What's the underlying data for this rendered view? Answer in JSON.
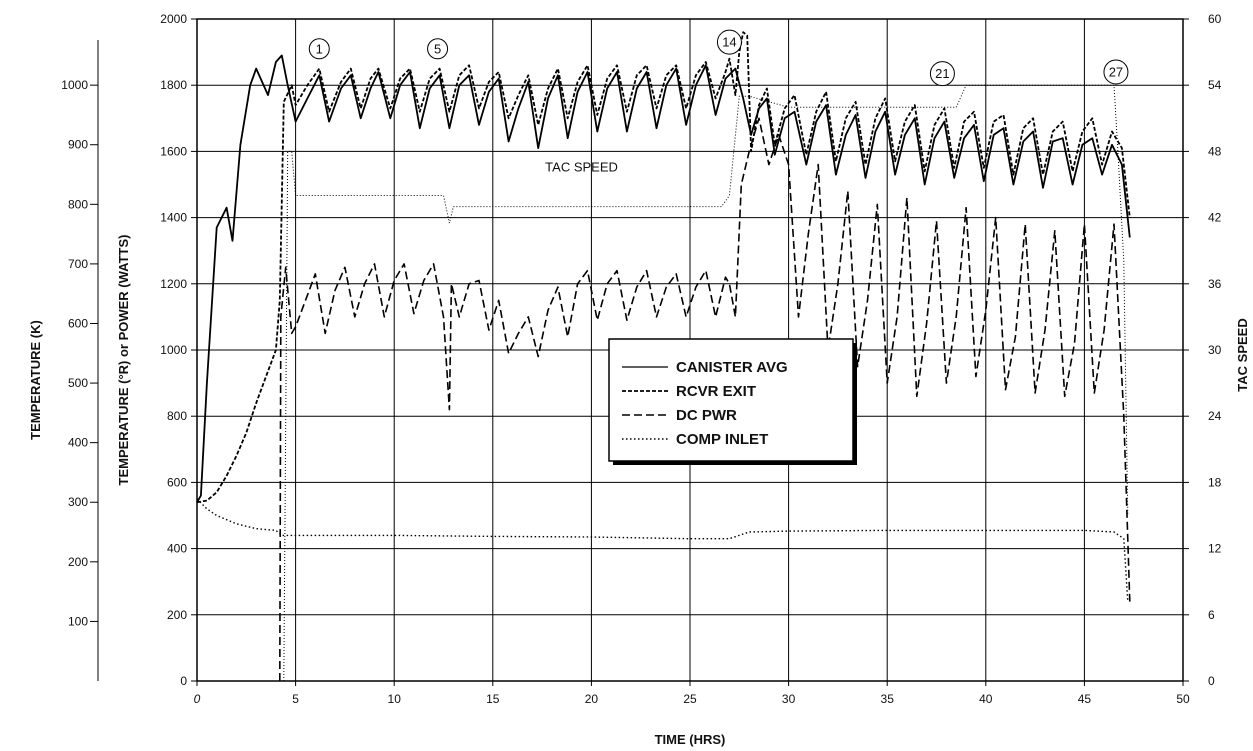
{
  "chart_data": {
    "type": "line",
    "xlabel": "TIME (HRS)",
    "ylabel_left": "TEMPERATURE (°R) or POWER (WATTS)",
    "ylabel_kelvin": "TEMPERATURE (K)",
    "ylabel_right": "TAC SPEED",
    "xlim": [
      0,
      50
    ],
    "ylim_left": [
      0,
      2000
    ],
    "ylim_right": [
      0,
      60
    ],
    "ylim_kelvin": [
      0,
      1111
    ],
    "x_ticks": [
      "0",
      "5",
      "10",
      "15",
      "20",
      "25",
      "30",
      "35",
      "40",
      "45",
      "50"
    ],
    "y_ticks_left": [
      "0",
      "200",
      "400",
      "600",
      "800",
      "1000",
      "1200",
      "1400",
      "1600",
      "1800",
      "2000"
    ],
    "y_ticks_right": [
      "0",
      "6",
      "12",
      "18",
      "24",
      "30",
      "36",
      "42",
      "48",
      "54",
      "60"
    ],
    "y_ticks_kelvin": [
      "100",
      "200",
      "300",
      "400",
      "500",
      "600",
      "700",
      "800",
      "900",
      "1000"
    ],
    "grid": true,
    "legend_position": "center",
    "annotations": [
      {
        "text": "1",
        "x": 6.2,
        "y": 1910
      },
      {
        "text": "5",
        "x": 12.2,
        "y": 1910
      },
      {
        "text": "14",
        "x": 27.0,
        "y": 1930
      },
      {
        "text": "21",
        "x": 37.8,
        "y": 1835
      },
      {
        "text": "27",
        "x": 46.6,
        "y": 1840
      }
    ],
    "inline_label": {
      "text": "TAC SPEED",
      "x": 19.5,
      "y": 1540
    },
    "series": [
      {
        "name": "CANISTER AVG",
        "style": "solid",
        "x": [
          0,
          0.2,
          0.5,
          1.0,
          1.5,
          1.8,
          2.2,
          2.7,
          3.0,
          3.3,
          3.6,
          4.0,
          4.3,
          4.6,
          5.0,
          5.6,
          6.2,
          6.7,
          7.3,
          7.8,
          8.3,
          8.8,
          9.2,
          9.8,
          10.3,
          10.8,
          11.3,
          11.8,
          12.3,
          12.8,
          13.3,
          13.8,
          14.3,
          14.8,
          15.3,
          15.8,
          16.3,
          16.8,
          17.3,
          17.8,
          18.3,
          18.8,
          19.3,
          19.8,
          20.3,
          20.8,
          21.3,
          21.8,
          22.3,
          22.8,
          23.3,
          23.8,
          24.3,
          24.8,
          25.3,
          25.8,
          26.3,
          26.8,
          27.3,
          27.7,
          28.1,
          28.5,
          28.9,
          29.3,
          29.8,
          30.3,
          30.9,
          31.4,
          31.9,
          32.4,
          32.9,
          33.4,
          33.9,
          34.4,
          34.9,
          35.4,
          35.9,
          36.4,
          36.9,
          37.4,
          37.9,
          38.4,
          38.9,
          39.4,
          39.9,
          40.4,
          40.9,
          41.4,
          41.9,
          42.4,
          42.9,
          43.4,
          43.9,
          44.4,
          44.9,
          45.4,
          45.9,
          46.4,
          46.9,
          47.3
        ],
        "values": [
          540,
          560,
          900,
          1370,
          1430,
          1330,
          1620,
          1800,
          1850,
          1810,
          1770,
          1870,
          1890,
          1800,
          1690,
          1760,
          1830,
          1690,
          1790,
          1830,
          1700,
          1790,
          1840,
          1700,
          1800,
          1840,
          1670,
          1790,
          1830,
          1670,
          1800,
          1830,
          1680,
          1780,
          1820,
          1630,
          1730,
          1810,
          1610,
          1760,
          1830,
          1640,
          1780,
          1840,
          1660,
          1790,
          1840,
          1660,
          1790,
          1840,
          1670,
          1800,
          1850,
          1680,
          1800,
          1860,
          1710,
          1820,
          1850,
          1760,
          1650,
          1730,
          1760,
          1590,
          1700,
          1720,
          1560,
          1690,
          1740,
          1530,
          1650,
          1710,
          1520,
          1660,
          1720,
          1530,
          1650,
          1700,
          1500,
          1640,
          1690,
          1520,
          1640,
          1680,
          1510,
          1650,
          1670,
          1500,
          1630,
          1660,
          1490,
          1630,
          1640,
          1500,
          1620,
          1640,
          1530,
          1620,
          1560,
          1340
        ]
      },
      {
        "name": "RCVR EXIT",
        "style": "dense dashed",
        "x": [
          0,
          0.5,
          1.0,
          1.5,
          2.0,
          2.5,
          3.0,
          3.5,
          4.0,
          4.2,
          4.4,
          4.8,
          5.0,
          5.6,
          6.2,
          6.7,
          7.3,
          7.8,
          8.3,
          8.8,
          9.2,
          9.8,
          10.3,
          10.8,
          11.3,
          11.8,
          12.3,
          12.8,
          13.3,
          13.8,
          14.3,
          14.8,
          15.3,
          15.8,
          16.3,
          16.8,
          17.3,
          17.8,
          18.3,
          18.8,
          19.3,
          19.8,
          20.3,
          20.8,
          21.3,
          21.8,
          22.3,
          22.8,
          23.3,
          23.8,
          24.3,
          24.8,
          25.3,
          25.8,
          26.3,
          26.8,
          27.0,
          27.3,
          27.5,
          27.7,
          27.9,
          28.1,
          28.5,
          28.9,
          29.3,
          29.8,
          30.3,
          30.9,
          31.4,
          31.9,
          32.4,
          32.9,
          33.4,
          33.9,
          34.4,
          34.9,
          35.4,
          35.9,
          36.4,
          36.9,
          37.4,
          37.9,
          38.4,
          38.9,
          39.4,
          39.9,
          40.4,
          40.9,
          41.4,
          41.9,
          42.4,
          42.9,
          43.4,
          43.9,
          44.4,
          44.9,
          45.4,
          45.9,
          46.4,
          46.9,
          47.3
        ],
        "values": [
          540,
          545,
          570,
          620,
          680,
          750,
          840,
          920,
          1000,
          1150,
          1750,
          1800,
          1740,
          1800,
          1850,
          1720,
          1810,
          1850,
          1730,
          1820,
          1850,
          1730,
          1820,
          1850,
          1720,
          1820,
          1850,
          1720,
          1830,
          1860,
          1730,
          1810,
          1840,
          1700,
          1770,
          1830,
          1680,
          1790,
          1850,
          1700,
          1810,
          1860,
          1710,
          1820,
          1860,
          1720,
          1830,
          1860,
          1730,
          1830,
          1860,
          1730,
          1830,
          1870,
          1760,
          1840,
          1880,
          1770,
          1900,
          1960,
          1950,
          1600,
          1740,
          1790,
          1620,
          1730,
          1770,
          1590,
          1720,
          1780,
          1570,
          1700,
          1750,
          1560,
          1700,
          1760,
          1570,
          1690,
          1740,
          1540,
          1680,
          1730,
          1550,
          1690,
          1720,
          1550,
          1690,
          1710,
          1530,
          1670,
          1700,
          1530,
          1660,
          1690,
          1540,
          1660,
          1700,
          1560,
          1660,
          1610,
          1400
        ]
      },
      {
        "name": "DC PWR",
        "style": "dashed",
        "x": [
          4.2,
          4.25,
          4.5,
          4.8,
          5.0,
          5.5,
          6.0,
          6.5,
          7.0,
          7.5,
          8.0,
          8.5,
          9.0,
          9.5,
          10.0,
          10.5,
          11.0,
          11.5,
          12.0,
          12.5,
          12.8,
          12.9,
          13.3,
          13.8,
          14.3,
          14.8,
          15.3,
          15.8,
          16.3,
          16.8,
          17.3,
          17.8,
          18.3,
          18.8,
          19.3,
          19.8,
          20.3,
          20.8,
          21.3,
          21.8,
          22.3,
          22.8,
          23.3,
          23.8,
          24.3,
          24.8,
          25.3,
          25.8,
          26.3,
          26.8,
          27.0,
          27.3,
          27.6,
          28.0,
          28.5,
          29.0,
          29.5,
          30.0,
          30.5,
          31.0,
          31.5,
          32.0,
          32.5,
          33.0,
          33.5,
          34.0,
          34.5,
          35.0,
          35.5,
          36.0,
          36.5,
          37.0,
          37.5,
          38.0,
          38.5,
          39.0,
          39.5,
          40.0,
          40.5,
          41.0,
          41.5,
          42.0,
          42.5,
          43.0,
          43.5,
          44.0,
          44.5,
          45.0,
          45.5,
          46.0,
          46.5,
          47.0,
          47.3
        ],
        "values": [
          0,
          1100,
          1250,
          1050,
          1070,
          1150,
          1230,
          1050,
          1180,
          1250,
          1100,
          1200,
          1260,
          1100,
          1210,
          1260,
          1110,
          1210,
          1260,
          1100,
          820,
          1200,
          1100,
          1200,
          1210,
          1060,
          1150,
          990,
          1050,
          1100,
          980,
          1120,
          1190,
          1040,
          1200,
          1240,
          1090,
          1200,
          1240,
          1090,
          1190,
          1240,
          1100,
          1190,
          1230,
          1100,
          1190,
          1240,
          1100,
          1220,
          1200,
          1100,
          1500,
          1600,
          1700,
          1560,
          1650,
          1560,
          1100,
          1350,
          1560,
          1000,
          1200,
          1480,
          950,
          1150,
          1440,
          900,
          1100,
          1460,
          860,
          1080,
          1390,
          900,
          1100,
          1430,
          920,
          1120,
          1400,
          880,
          1040,
          1380,
          870,
          1060,
          1360,
          860,
          1020,
          1380,
          870,
          1060,
          1380,
          800,
          240
        ]
      },
      {
        "name": "COMP INLET",
        "style": "dotted",
        "x": [
          0,
          0.5,
          1,
          2,
          3,
          4,
          4.3,
          5,
          10,
          15,
          20,
          25,
          27,
          28,
          30,
          35,
          40,
          45,
          46.5,
          47.0,
          47.2
        ],
        "values": [
          550,
          520,
          500,
          475,
          460,
          455,
          440,
          440,
          440,
          437,
          435,
          430,
          430,
          450,
          453,
          455,
          455,
          455,
          450,
          430,
          240
        ]
      },
      {
        "name": "TAC SPEED",
        "style": "sparse dotted",
        "axis": "right",
        "x": [
          4.4,
          4.6,
          4.8,
          5.0,
          7,
          10,
          12.5,
          12.8,
          13.0,
          15,
          20,
          25,
          26.6,
          27.0,
          27.5,
          28,
          30,
          35,
          38.5,
          39.0,
          40,
          45,
          46.5,
          46.7,
          47.0,
          47.2
        ],
        "values": [
          0,
          48,
          48,
          44,
          44,
          44,
          44,
          41.5,
          43,
          43,
          43,
          43,
          43,
          44,
          53,
          53,
          52,
          52,
          52,
          54,
          54,
          54,
          54,
          48,
          38,
          15
        ]
      }
    ]
  }
}
